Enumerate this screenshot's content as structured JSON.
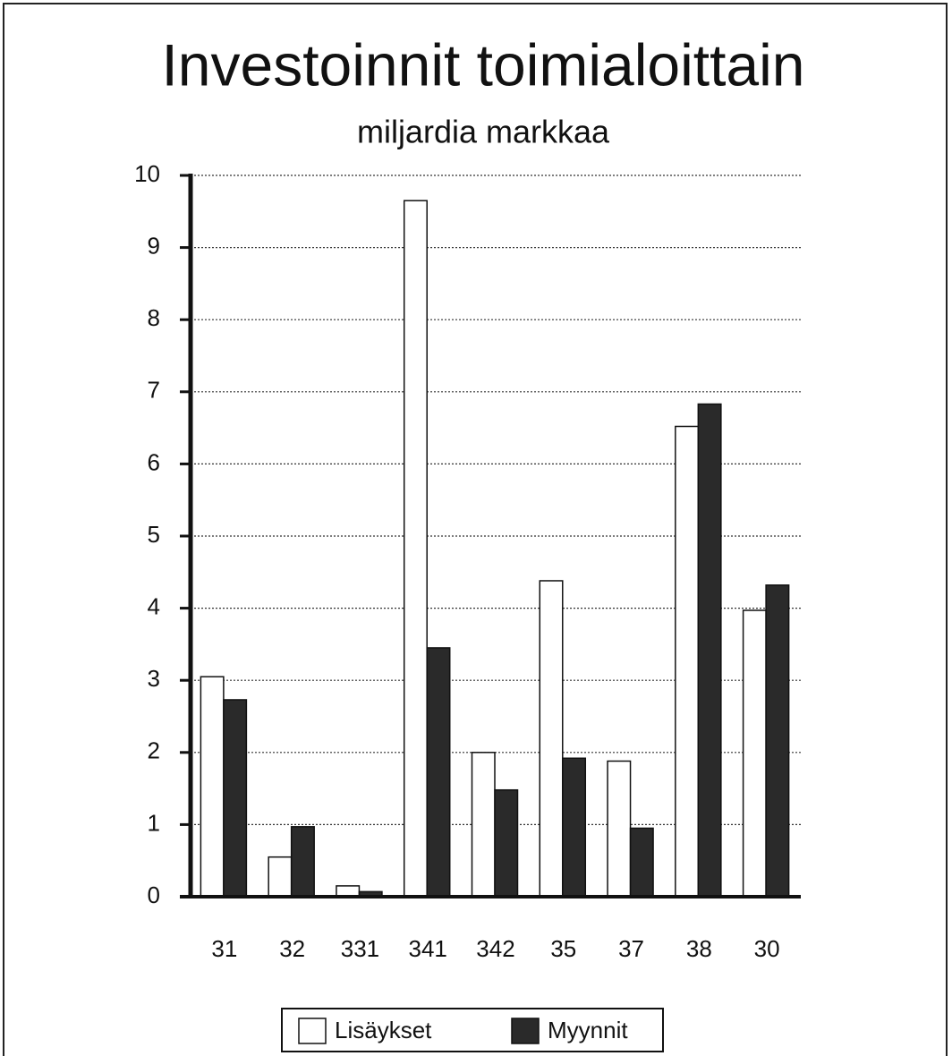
{
  "chart_data": {
    "type": "bar",
    "title": "Investoinnit toimialoittain",
    "subtitle": "miljardia markkaa",
    "categories": [
      "31",
      "32",
      "331",
      "341",
      "342",
      "35",
      "37",
      "38",
      "30"
    ],
    "series": [
      {
        "name": "Lisäykset",
        "color": "#ffffff",
        "values": [
          3.05,
          0.55,
          0.15,
          9.65,
          2.0,
          4.38,
          1.88,
          6.52,
          3.97
        ]
      },
      {
        "name": "Myynnit",
        "color": "#2a2a2a",
        "values": [
          2.73,
          0.97,
          0.07,
          3.45,
          1.48,
          1.92,
          0.95,
          6.83,
          4.32
        ]
      }
    ],
    "ylim": [
      0,
      10
    ],
    "yticks": [
      0,
      1,
      2,
      3,
      4,
      5,
      6,
      7,
      8,
      9,
      10
    ],
    "grid": true,
    "legend": "bottom"
  }
}
